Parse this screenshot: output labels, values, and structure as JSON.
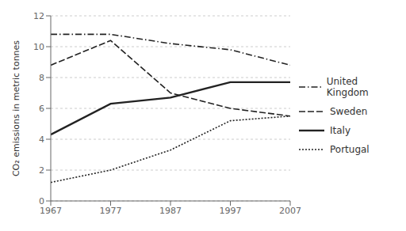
{
  "chart_data": {
    "type": "line",
    "ylabel": "CO₂ emissions in metric tonnes",
    "x": [
      1967,
      1977,
      1987,
      1997,
      2007
    ],
    "series": [
      {
        "name": "United Kingdom",
        "color": "#222222",
        "line_style": "dashdot",
        "values": [
          10.8,
          10.8,
          10.2,
          9.8,
          8.8
        ]
      },
      {
        "name": "Sweden",
        "color": "#222222",
        "line_style": "dashed",
        "values": [
          8.8,
          10.4,
          7.0,
          6.0,
          5.5
        ]
      },
      {
        "name": "Italy",
        "color": "#222222",
        "line_style": "solid",
        "values": [
          4.3,
          6.3,
          6.7,
          7.7,
          7.7
        ]
      },
      {
        "name": "Portugal",
        "color": "#222222",
        "line_style": "dotted",
        "values": [
          1.2,
          2.0,
          3.3,
          5.2,
          5.5
        ]
      }
    ],
    "xlim": [
      1967,
      2007
    ],
    "xticks": [
      1967,
      1977,
      1987,
      1997,
      2007
    ],
    "ylim": [
      0,
      12
    ],
    "yticks": [
      0,
      2,
      4,
      6,
      8,
      10,
      12
    ],
    "grid": true,
    "legend": "right"
  }
}
